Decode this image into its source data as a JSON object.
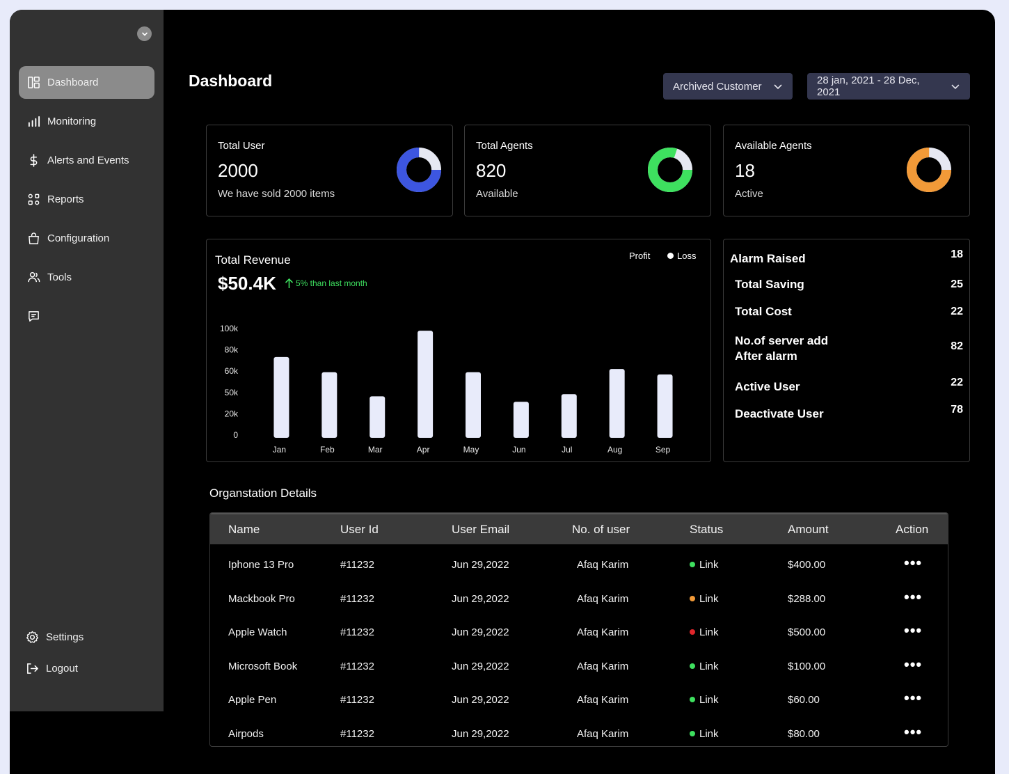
{
  "sidebar": {
    "items": [
      {
        "label": "Dashboard",
        "icon": "dashboard-icon",
        "active": true
      },
      {
        "label": "Monitoring",
        "icon": "bar-chart-icon"
      },
      {
        "label": "Alerts and Events",
        "icon": "dollar-icon"
      },
      {
        "label": "Reports",
        "icon": "reports-icon"
      },
      {
        "label": "Configuration",
        "icon": "bag-icon"
      },
      {
        "label": "Tools",
        "icon": "users-icon"
      },
      {
        "label": "",
        "icon": "message-icon"
      }
    ],
    "bottom": [
      {
        "label": "Settings",
        "icon": "gear-icon"
      },
      {
        "label": "Logout",
        "icon": "logout-icon"
      }
    ]
  },
  "header": {
    "title": "Dashboard",
    "customer_filter": "Archived Customer",
    "date_range": "28 jan, 2021 - 28 Dec, 2021"
  },
  "stats": [
    {
      "label": "Total User",
      "value": "2000",
      "sub": "We have sold 2000 items",
      "color": "#3d56e0",
      "fraction": 0.75
    },
    {
      "label": "Total Agents",
      "value": "820",
      "sub": "Available",
      "color": "#3ee05f",
      "fraction": 0.8
    },
    {
      "label": "Available Agents",
      "value": "18",
      "sub": "Active",
      "color": "#f29a38",
      "fraction": 0.75
    }
  ],
  "revenue": {
    "title": "Total Revenue",
    "value": "$50.4K",
    "change": "5% than last month",
    "legend_profit": "Profit",
    "legend_loss": "Loss"
  },
  "chart_data": {
    "type": "bar",
    "categories": [
      "Jan",
      "Feb",
      "Mar",
      "Apr",
      "May",
      "Jun",
      "Jul",
      "Aug",
      "Sep"
    ],
    "values": [
      74,
      60,
      38,
      98,
      60,
      33,
      40,
      63,
      58
    ],
    "y_ticks": [
      "0",
      "20k",
      "50k",
      "60k",
      "80k",
      "100k"
    ],
    "ylim": [
      0,
      100
    ],
    "bar_color": "#e8ebfa",
    "xlabel": "",
    "ylabel": ""
  },
  "alarms": [
    {
      "label": "Alarm Raised",
      "value": "18"
    },
    {
      "label": "Total Saving",
      "value": "25"
    },
    {
      "label": "Total Cost",
      "value": "22"
    },
    {
      "label": "No.of server add",
      "label2": "After alarm",
      "value": "82"
    },
    {
      "label": "Active User",
      "value": "22"
    },
    {
      "label": "Deactivate User",
      "value": "78"
    }
  ],
  "table": {
    "title": "Organstation Details",
    "columns": [
      "Name",
      "User Id",
      "User Email",
      "No. of user",
      "Status",
      "Amount",
      "Action"
    ],
    "rows": [
      {
        "name": "Iphone 13 Pro",
        "id": "#11232",
        "email": "Jun 29,2022",
        "users": "Afaq Karim",
        "status": "Link",
        "status_color": "#3ee05f",
        "amount": "$400.00",
        "action": "•••"
      },
      {
        "name": "Mackbook Pro",
        "id": "#11232",
        "email": "Jun 29,2022",
        "users": "Afaq Karim",
        "status": "Link",
        "status_color": "#f29a38",
        "amount": "$288.00",
        "action": "•••"
      },
      {
        "name": "Apple Watch",
        "id": "#11232",
        "email": "Jun 29,2022",
        "users": "Afaq Karim",
        "status": "Link",
        "status_color": "#e0262b",
        "amount": "$500.00",
        "action": "•••"
      },
      {
        "name": "Microsoft Book",
        "id": "#11232",
        "email": "Jun 29,2022",
        "users": "Afaq Karim",
        "status": "Link",
        "status_color": "#3ee05f",
        "amount": "$100.00",
        "action": "•••"
      },
      {
        "name": "Apple Pen",
        "id": "#11232",
        "email": "Jun 29,2022",
        "users": "Afaq Karim",
        "status": "Link",
        "status_color": "#3ee05f",
        "amount": "$60.00",
        "action": "•••"
      },
      {
        "name": "Airpods",
        "id": "#11232",
        "email": "Jun 29,2022",
        "users": "Afaq Karim",
        "status": "Link",
        "status_color": "#3ee05f",
        "amount": "$80.00",
        "action": "•••"
      }
    ]
  }
}
